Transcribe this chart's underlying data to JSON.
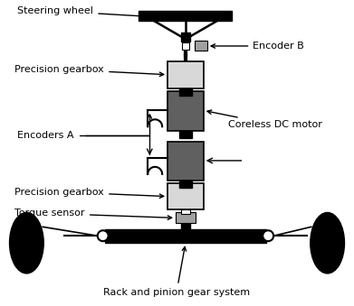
{
  "labels": {
    "steering_wheel": "Steering wheel",
    "encoder_b": "Encoder B",
    "precision_gearbox_top": "Precision gearbox",
    "encoders_a": "Encoders A",
    "coreless_dc": "Coreless DC motor",
    "precision_gearbox_bot": "Precision gearbox",
    "torque_sensor": "Torque sensor",
    "rack_pinion": "Rack and pinion gear system"
  },
  "colors": {
    "black": "#000000",
    "dark_gray": "#606060",
    "light_gray": "#d8d8d8",
    "mid_gray": "#a0a0a0",
    "white": "#ffffff"
  }
}
